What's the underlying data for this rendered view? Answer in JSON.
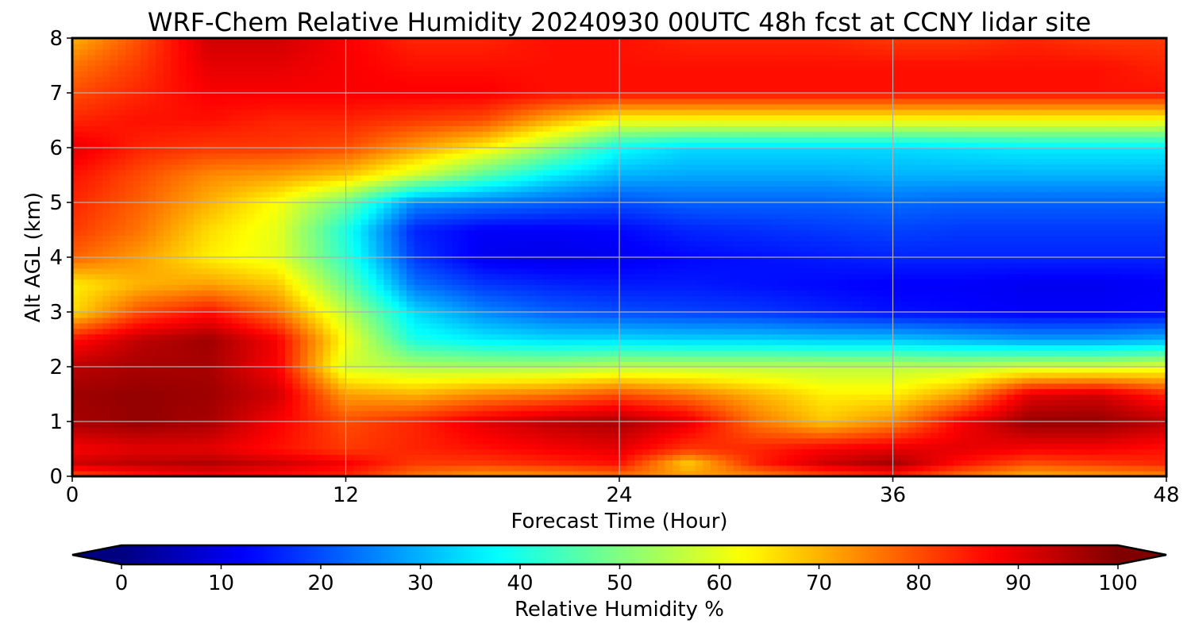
{
  "chart_data": {
    "type": "heatmap",
    "subtype": "filled-contour",
    "title": "WRF-Chem Relative Humidity 20240930 00UTC 48h fcst at CCNY lidar site",
    "xlabel": "Forecast Time (Hour)",
    "ylabel": "Alt AGL (km)",
    "xlim": [
      0,
      48
    ],
    "ylim": [
      0,
      8
    ],
    "x_ticks": [
      0,
      12,
      24,
      36,
      48
    ],
    "y_ticks": [
      0,
      1,
      2,
      3,
      4,
      5,
      6,
      7,
      8
    ],
    "grid": true,
    "colormap": "jet",
    "colorbar": {
      "label": "Relative Humidity %",
      "orientation": "horizontal",
      "placement": "bottom",
      "range": [
        0,
        100
      ],
      "ticks": [
        0,
        10,
        20,
        30,
        40,
        50,
        60,
        70,
        80,
        90,
        100
      ],
      "extend": "both"
    },
    "x": [
      0,
      3,
      6,
      9,
      12,
      15,
      18,
      21,
      24,
      27,
      30,
      33,
      36,
      39,
      42,
      45,
      48
    ],
    "y": [
      0,
      0.25,
      0.5,
      1,
      1.5,
      2,
      2.5,
      3,
      3.5,
      4,
      4.5,
      5,
      5.5,
      6,
      6.5,
      7,
      7.5,
      8
    ],
    "z": [
      [
        80,
        85,
        88,
        86,
        84,
        76,
        72,
        73,
        76,
        72,
        74,
        80,
        84,
        76,
        70,
        72,
        74
      ],
      [
        92,
        94,
        95,
        92,
        88,
        82,
        82,
        84,
        86,
        68,
        84,
        92,
        96,
        86,
        80,
        82,
        84
      ],
      [
        88,
        90,
        90,
        86,
        82,
        84,
        86,
        88,
        90,
        82,
        84,
        88,
        90,
        90,
        88,
        88,
        86
      ],
      [
        96,
        98,
        96,
        88,
        80,
        84,
        90,
        94,
        96,
        90,
        76,
        68,
        74,
        88,
        98,
        98,
        94
      ],
      [
        97,
        98,
        97,
        92,
        72,
        70,
        74,
        76,
        80,
        76,
        70,
        64,
        64,
        72,
        90,
        92,
        84
      ],
      [
        94,
        96,
        96,
        88,
        58,
        55,
        54,
        54,
        56,
        56,
        56,
        56,
        56,
        56,
        58,
        58,
        60
      ],
      [
        86,
        94,
        97,
        88,
        62,
        40,
        36,
        34,
        34,
        33,
        33,
        32,
        32,
        30,
        28,
        28,
        30
      ],
      [
        66,
        80,
        86,
        76,
        56,
        34,
        26,
        22,
        20,
        19,
        18,
        16,
        14,
        13,
        12,
        12,
        13
      ],
      [
        64,
        70,
        72,
        68,
        48,
        24,
        18,
        16,
        15,
        15,
        14,
        13,
        12,
        12,
        11,
        11,
        12
      ],
      [
        78,
        72,
        64,
        60,
        42,
        18,
        11,
        10,
        11,
        13,
        14,
        15,
        16,
        16,
        16,
        16,
        16
      ],
      [
        82,
        76,
        66,
        60,
        40,
        16,
        12,
        12,
        13,
        16,
        17,
        18,
        19,
        18,
        18,
        18,
        18
      ],
      [
        84,
        78,
        70,
        62,
        48,
        26,
        24,
        22,
        20,
        22,
        22,
        22,
        23,
        22,
        22,
        22,
        22
      ],
      [
        86,
        80,
        74,
        72,
        68,
        58,
        46,
        36,
        30,
        29,
        29,
        29,
        30,
        30,
        30,
        30,
        30
      ],
      [
        90,
        84,
        82,
        82,
        80,
        72,
        64,
        52,
        38,
        34,
        34,
        34,
        34,
        35,
        36,
        36,
        36
      ],
      [
        84,
        86,
        86,
        84,
        84,
        82,
        80,
        70,
        62,
        62,
        62,
        62,
        62,
        62,
        62,
        62,
        62
      ],
      [
        80,
        84,
        88,
        88,
        88,
        88,
        88,
        86,
        86,
        86,
        86,
        86,
        86,
        86,
        86,
        86,
        86
      ],
      [
        76,
        82,
        90,
        90,
        88,
        86,
        86,
        86,
        86,
        86,
        86,
        86,
        86,
        86,
        86,
        86,
        84
      ],
      [
        70,
        80,
        92,
        92,
        88,
        84,
        84,
        86,
        86,
        84,
        84,
        84,
        82,
        82,
        84,
        82,
        82
      ]
    ]
  }
}
